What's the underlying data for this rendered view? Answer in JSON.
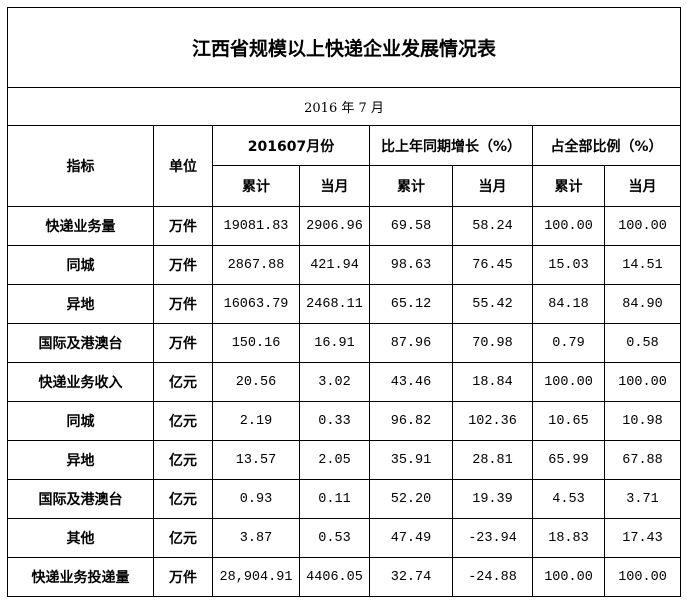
{
  "title": "江西省规模以上快递企业发展情况表",
  "date": "2016 年 7 月",
  "headers": {
    "indicator": "指标",
    "unit": "单位",
    "group1": "201607月份",
    "group2": "比上年同期增长（%）",
    "group3": "占全部比例（%）",
    "cumulative": "累计",
    "current_month": "当月"
  },
  "rows": [
    {
      "name": "快递业务量",
      "unit": "万件",
      "values": [
        "19081.83",
        "2906.96",
        "69.58",
        "58.24",
        "100.00",
        "100.00"
      ]
    },
    {
      "name": "同城",
      "unit": "万件",
      "values": [
        "2867.88",
        "421.94",
        "98.63",
        "76.45",
        "15.03",
        "14.51"
      ]
    },
    {
      "name": "异地",
      "unit": "万件",
      "values": [
        "16063.79",
        "2468.11",
        "65.12",
        "55.42",
        "84.18",
        "84.90"
      ]
    },
    {
      "name": "国际及港澳台",
      "unit": "万件",
      "values": [
        "150.16",
        "16.91",
        "87.96",
        "70.98",
        "0.79",
        "0.58"
      ]
    },
    {
      "name": "快递业务收入",
      "unit": "亿元",
      "values": [
        "20.56",
        "3.02",
        "43.46",
        "18.84",
        "100.00",
        "100.00"
      ]
    },
    {
      "name": "同城",
      "unit": "亿元",
      "values": [
        "2.19",
        "0.33",
        "96.82",
        "102.36",
        "10.65",
        "10.98"
      ]
    },
    {
      "name": "异地",
      "unit": "亿元",
      "values": [
        "13.57",
        "2.05",
        "35.91",
        "28.81",
        "65.99",
        "67.88"
      ]
    },
    {
      "name": "国际及港澳台",
      "unit": "亿元",
      "values": [
        "0.93",
        "0.11",
        "52.20",
        "19.39",
        "4.53",
        "3.71"
      ]
    },
    {
      "name": "其他",
      "unit": "亿元",
      "values": [
        "3.87",
        "0.53",
        "47.49",
        "-23.94",
        "18.83",
        "17.43"
      ]
    },
    {
      "name": "快递业务投递量",
      "unit": "万件",
      "values": [
        "28,904.91",
        "4406.05",
        "32.74",
        "-24.88",
        "100.00",
        "100.00"
      ]
    }
  ]
}
